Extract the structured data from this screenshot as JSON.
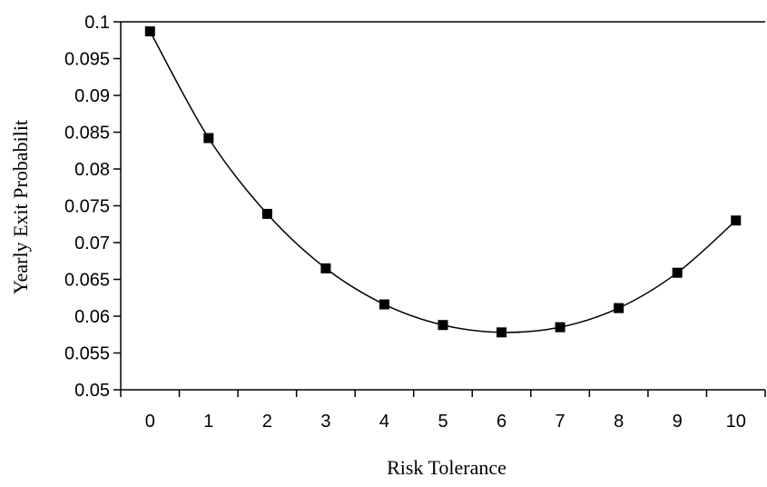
{
  "chart_data": {
    "type": "line",
    "xlabel": "Risk Tolerance",
    "ylabel": "Yearly Exit Probabilit",
    "x": [
      0,
      1,
      2,
      3,
      4,
      5,
      6,
      7,
      8,
      9,
      10
    ],
    "series": [
      {
        "values": [
          0.0987,
          0.0842,
          0.0739,
          0.0665,
          0.0616,
          0.0588,
          0.0578,
          0.0585,
          0.0611,
          0.0659,
          0.073
        ]
      }
    ],
    "xticks": [
      "0",
      "1",
      "2",
      "3",
      "4",
      "5",
      "6",
      "7",
      "8",
      "9",
      "10"
    ],
    "yticks": [
      "0.05",
      "0.055",
      "0.06",
      "0.065",
      "0.07",
      "0.075",
      "0.08",
      "0.085",
      "0.09",
      "0.095",
      "0.1"
    ],
    "ylim": [
      0.05,
      0.1
    ],
    "xlim": [
      -0.5,
      10.5
    ],
    "grid": false,
    "line_color": "#000000",
    "marker": "square"
  }
}
